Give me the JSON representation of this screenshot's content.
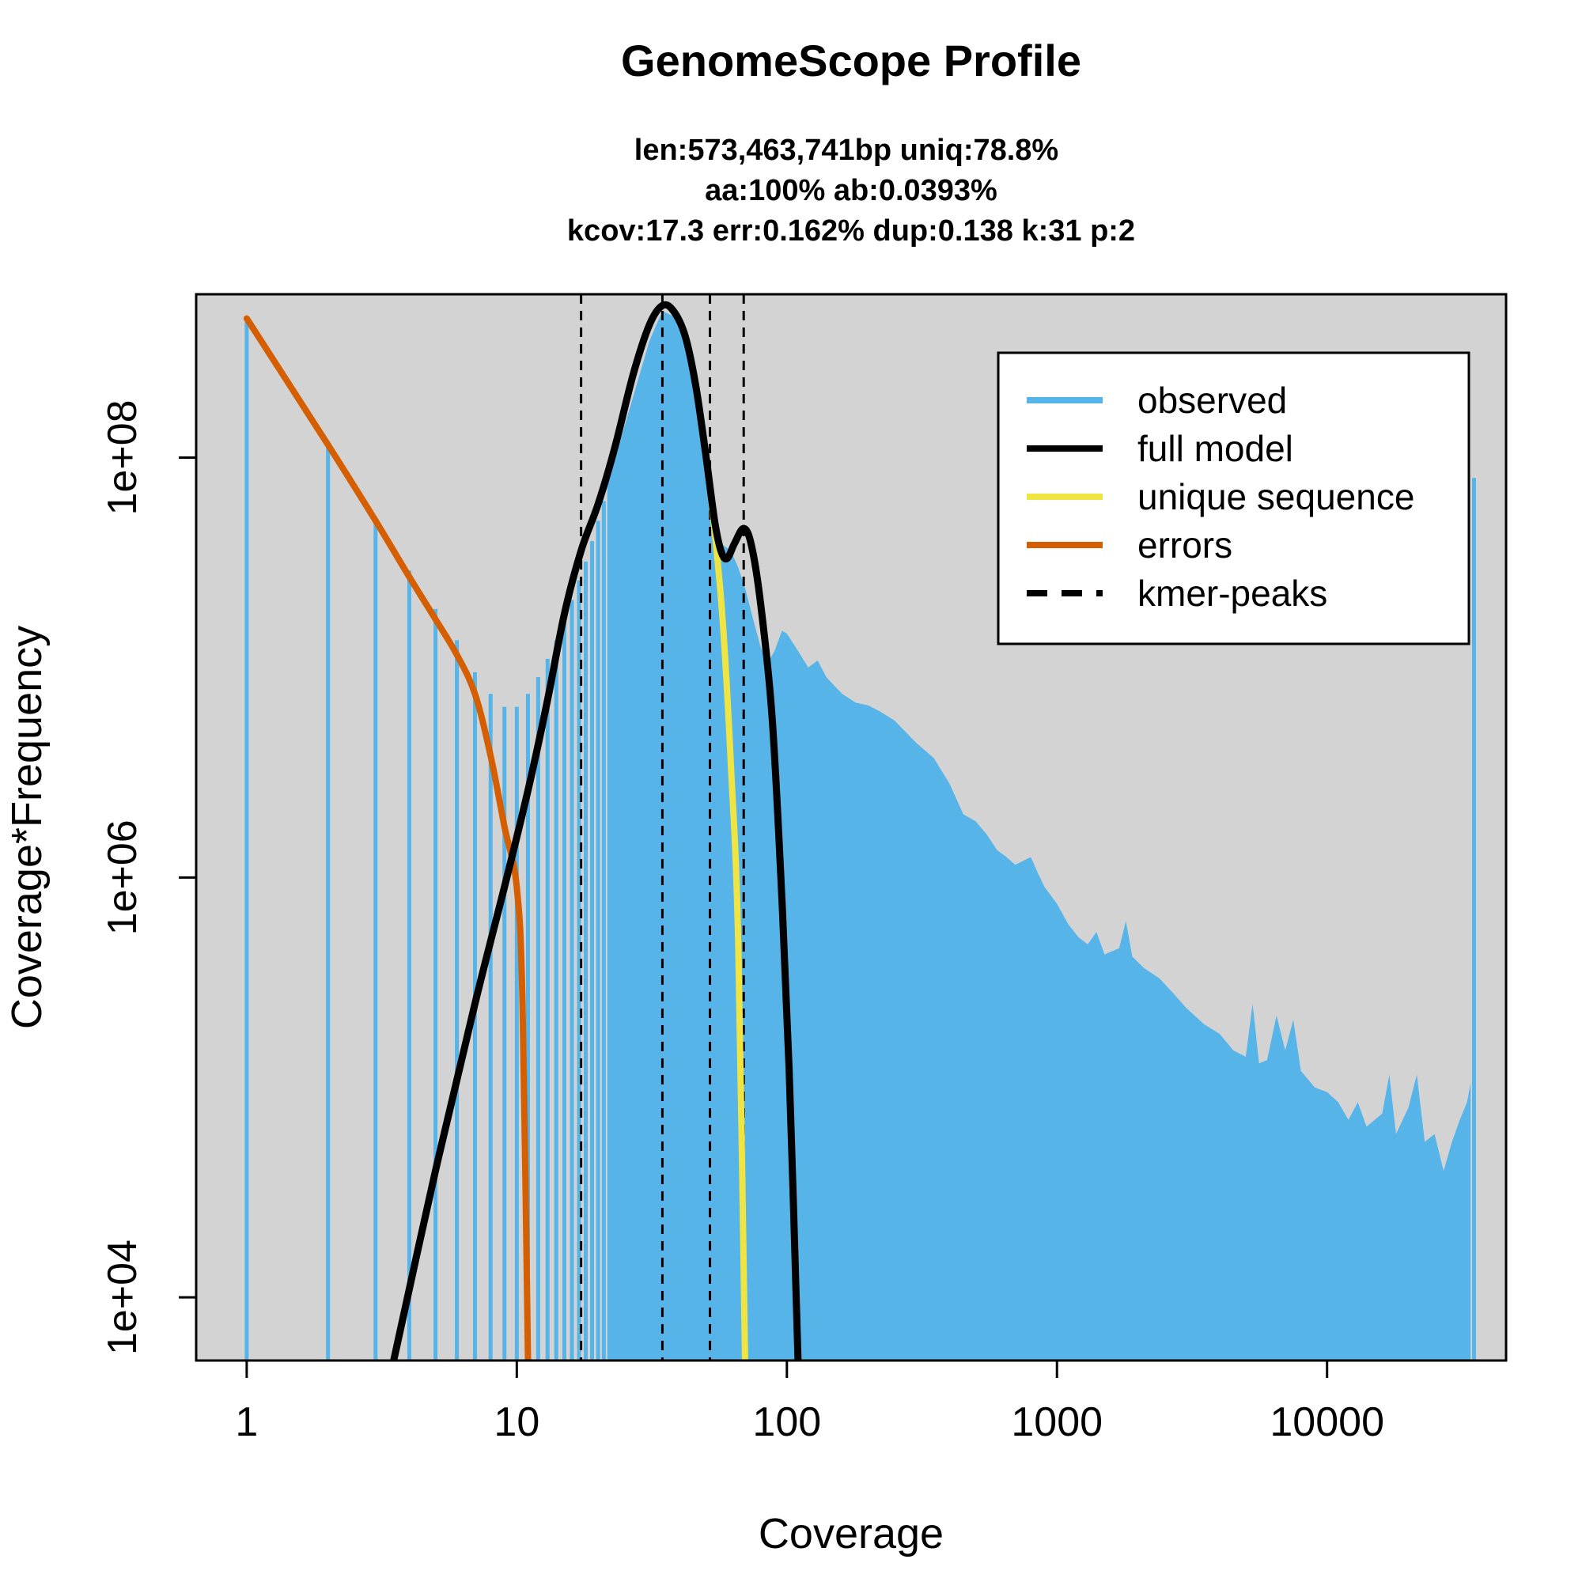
{
  "chart_data": {
    "type": "area",
    "title": "GenomeScope Profile",
    "subtitle_lines": [
      "len:573,463,741bp uniq:78.8%",
      "aa:100% ab:0.0393%",
      "kcov:17.3 err:0.162%  dup:0.138  k:31 p:2"
    ],
    "xlabel": "Coverage",
    "ylabel": "Coverage*Frequency",
    "x_scale": "log",
    "y_scale": "log",
    "xlim": [
      0.65,
      46000
    ],
    "ylim": [
      5000,
      600000000
    ],
    "x_ticks": [
      1,
      10,
      100,
      1000,
      10000
    ],
    "x_tick_labels": [
      "1",
      "10",
      "100",
      "1000",
      "10000"
    ],
    "y_ticks": [
      10000,
      1000000,
      100000000
    ],
    "y_tick_labels": [
      "1e+04",
      "1e+06",
      "1e+08"
    ],
    "background": "#d3d3d3",
    "legend": {
      "position": "top-right",
      "entries": [
        {
          "label": "observed",
          "color": "#56b4e9",
          "style": "solid"
        },
        {
          "label": "full model",
          "color": "#000000",
          "style": "solid"
        },
        {
          "label": "unique sequence",
          "color": "#f0e442",
          "style": "solid"
        },
        {
          "label": "errors",
          "color": "#d55e00",
          "style": "solid"
        },
        {
          "label": "kmer-peaks",
          "color": "#000000",
          "style": "dashed"
        }
      ]
    },
    "kmer_peaks": [
      17.3,
      34.6,
      51.9,
      69.2
    ],
    "series": [
      {
        "name": "observed",
        "color": "#56b4e9",
        "low_coverage_bars": [
          [
            1,
            460000000.0
          ],
          [
            2,
            120000000.0
          ],
          [
            3,
            50000000.0
          ],
          [
            4,
            29000000.0
          ],
          [
            5,
            19000000.0
          ],
          [
            6,
            13500000.0
          ],
          [
            7,
            9500000.0
          ],
          [
            8,
            7500000.0
          ],
          [
            9,
            6500000.0
          ],
          [
            10,
            6500000.0
          ],
          [
            11,
            7500000.0
          ],
          [
            12,
            9000000.0
          ],
          [
            13,
            11000000.0
          ],
          [
            14,
            13500000.0
          ],
          [
            15,
            17000000.0
          ],
          [
            16,
            21000000.0
          ],
          [
            17,
            26000000.0
          ],
          [
            18,
            32000000.0
          ],
          [
            19,
            40000000.0
          ],
          [
            20,
            50000000.0
          ],
          [
            21,
            62000000.0
          ],
          [
            22,
            78000000.0
          ]
        ],
        "envelope": [
          [
            22,
            78000000.0
          ],
          [
            25,
            140000000.0
          ],
          [
            28,
            230000000.0
          ],
          [
            31,
            360000000.0
          ],
          [
            34.6,
            500000000.0
          ],
          [
            38,
            470000000.0
          ],
          [
            42,
            360000000.0
          ],
          [
            46,
            230000000.0
          ],
          [
            50,
            120000000.0
          ],
          [
            54,
            58000000.0
          ],
          [
            57,
            39000000.0
          ],
          [
            62,
            36000000.0
          ],
          [
            66,
            30000000.0
          ],
          [
            70,
            24000000.0
          ],
          [
            75,
            17000000.0
          ],
          [
            80,
            12500000.0
          ],
          [
            85,
            10500000.0
          ],
          [
            90,
            12000000.0
          ],
          [
            96,
            15000000.0
          ],
          [
            100,
            14500000.0
          ],
          [
            110,
            12000000.0
          ],
          [
            120,
            10000000.0
          ],
          [
            130,
            10800000.0
          ],
          [
            140,
            9000000.0
          ],
          [
            160,
            7500000.0
          ],
          [
            180,
            6800000.0
          ],
          [
            200,
            6600000.0
          ],
          [
            220,
            6200000.0
          ],
          [
            250,
            5600000.0
          ],
          [
            300,
            4400000.0
          ],
          [
            350,
            3700000.0
          ],
          [
            400,
            2800000.0
          ],
          [
            450,
            2000000.0
          ],
          [
            500,
            1850000.0
          ],
          [
            550,
            1600000.0
          ],
          [
            600,
            1350000.0
          ],
          [
            650,
            1250000.0
          ],
          [
            700,
            1150000.0
          ],
          [
            750,
            1200000.0
          ],
          [
            800,
            1250000.0
          ],
          [
            850,
            1050000.0
          ],
          [
            900,
            900000.0
          ],
          [
            1000,
            750000.0
          ],
          [
            1100,
            600000.0
          ],
          [
            1200,
            520000.0
          ],
          [
            1300,
            480000.0
          ],
          [
            1400,
            550000.0
          ],
          [
            1500,
            430000.0
          ],
          [
            1700,
            460000.0
          ],
          [
            1800,
            620000.0
          ],
          [
            1900,
            420000.0
          ],
          [
            2100,
            370000.0
          ],
          [
            2400,
            330000.0
          ],
          [
            2700,
            280000.0
          ],
          [
            3000,
            240000.0
          ],
          [
            3500,
            200000.0
          ],
          [
            4000,
            180000.0
          ],
          [
            4500,
            150000.0
          ],
          [
            5000,
            140000.0
          ],
          [
            5300,
            250000.0
          ],
          [
            5600,
            130000.0
          ],
          [
            6000,
            135000.0
          ],
          [
            6500,
            220000.0
          ],
          [
            7000,
            150000.0
          ],
          [
            7500,
            210000.0
          ],
          [
            8000,
            120000.0
          ],
          [
            9000,
            100000.0
          ],
          [
            10000,
            95000.0
          ],
          [
            11000,
            85000.0
          ],
          [
            12000,
            70000.0
          ],
          [
            13000,
            85000.0
          ],
          [
            14000,
            65000.0
          ],
          [
            16000,
            75000.0
          ],
          [
            17000,
            115000.0
          ],
          [
            18000,
            60000.0
          ],
          [
            20000,
            80000.0
          ],
          [
            21500,
            115000.0
          ],
          [
            23000,
            55000.0
          ],
          [
            25000,
            60000.0
          ],
          [
            27000,
            40000.0
          ],
          [
            29000,
            55000.0
          ],
          [
            31000,
            70000.0
          ],
          [
            33000,
            85000.0
          ],
          [
            34000,
            105000.0
          ]
        ],
        "end_spike": [
          35000,
          80000000.0
        ]
      },
      {
        "name": "full model",
        "color": "#000000",
        "points": [
          [
            3.5,
            5000.0
          ],
          [
            5,
            40000.0
          ],
          [
            7,
            250000.0
          ],
          [
            9,
            900000.0
          ],
          [
            11,
            2600000.0
          ],
          [
            13,
            7000000.0
          ],
          [
            15,
            18000000.0
          ],
          [
            17.3,
            36000000.0
          ],
          [
            20,
            60000000.0
          ],
          [
            23,
            110000000.0
          ],
          [
            27,
            250000000.0
          ],
          [
            31,
            430000000.0
          ],
          [
            34.6,
            530000000.0
          ],
          [
            38,
            500000000.0
          ],
          [
            42,
            380000000.0
          ],
          [
            46,
            220000000.0
          ],
          [
            50,
            105000000.0
          ],
          [
            54,
            50000000.0
          ],
          [
            57,
            36000000.0
          ],
          [
            60,
            33000000.0
          ],
          [
            64,
            39000000.0
          ],
          [
            69.2,
            46000000.0
          ],
          [
            74,
            38000000.0
          ],
          [
            80,
            20000000.0
          ],
          [
            88,
            6000000.0
          ],
          [
            95,
            1000000.0
          ],
          [
            102,
            120000.0
          ],
          [
            110,
            5000.0
          ]
        ]
      },
      {
        "name": "unique sequence",
        "color": "#f0e442",
        "points": [
          [
            50,
            105000000.0
          ],
          [
            54,
            45000000.0
          ],
          [
            58,
            16000000.0
          ],
          [
            62,
            3500000.0
          ],
          [
            66,
            500000.0
          ],
          [
            70,
            5000.0
          ]
        ]
      },
      {
        "name": "errors",
        "color": "#d55e00",
        "points": [
          [
            1,
            460000000.0
          ],
          [
            2,
            115000000.0
          ],
          [
            3,
            50000000.0
          ],
          [
            4,
            27000000.0
          ],
          [
            5,
            17000000.0
          ],
          [
            6,
            11500000.0
          ],
          [
            7,
            7500000.0
          ],
          [
            8,
            3800000.0
          ],
          [
            9,
            1750000.0
          ],
          [
            10,
            900000.0
          ],
          [
            10.5,
            250000.0
          ],
          [
            11,
            5000.0
          ]
        ]
      }
    ]
  }
}
